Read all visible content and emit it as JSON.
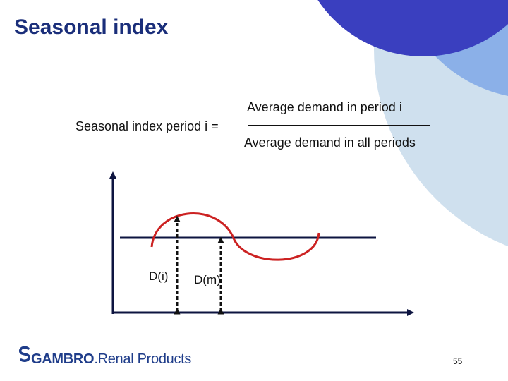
{
  "slide": {
    "title": "Seasonal index",
    "page_number": "55"
  },
  "formula": {
    "lhs": "Seasonal index period i =",
    "numerator": "Average demand in period i",
    "denominator": "Average demand in all periods"
  },
  "diagram": {
    "label_di": "D(i)",
    "label_dm": "D(m)"
  },
  "logo": {
    "brand": "GAMBRO",
    "dot": ".",
    "product": "Renal Products"
  },
  "colors": {
    "title": "#1a2e7a",
    "curve": "#cc2222",
    "axes": "#0d1440",
    "deco_dark": "#3a3fbf",
    "deco_mid": "#8bb0e8",
    "deco_light": "#cfe0ee",
    "logo": "#1f3d8a"
  },
  "icons": {
    "logo_mark": "gambro-logo-icon"
  }
}
